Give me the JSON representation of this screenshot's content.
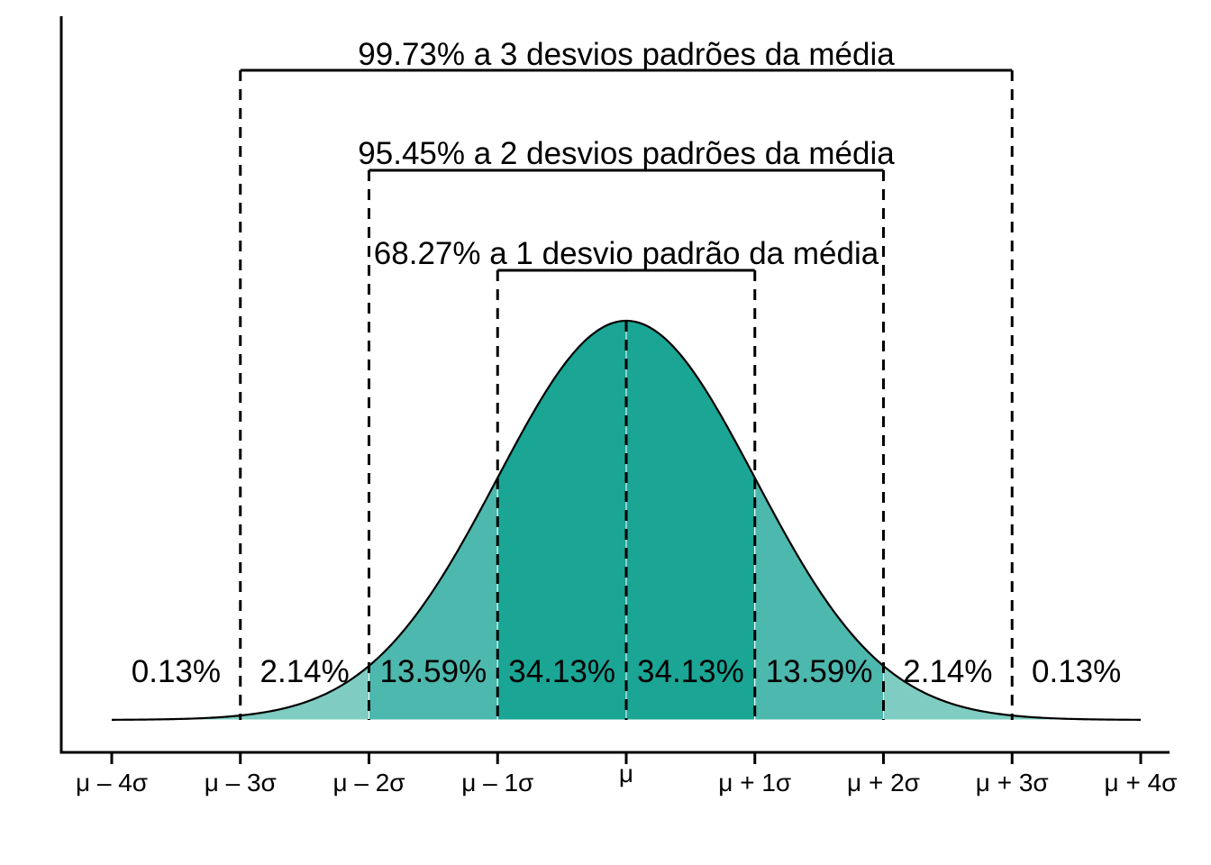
{
  "chart_data": {
    "type": "area",
    "title": "",
    "xlabel": "",
    "ylabel": "",
    "xlim": [
      -4,
      4
    ],
    "distribution": {
      "name": "normal",
      "mean": 0,
      "sd": 1
    },
    "x_ticks": [
      -4,
      -3,
      -2,
      -1,
      0,
      1,
      2,
      3,
      4
    ],
    "x_tick_labels": [
      "μ – 4σ",
      "μ – 3σ",
      "μ – 2σ",
      "μ – 1σ",
      "μ",
      "μ + 1σ",
      "μ + 2σ",
      "μ + 3σ",
      "μ + 4σ"
    ],
    "sigma_lines": [
      -3,
      -2,
      -1,
      0,
      1,
      2,
      3
    ],
    "regions": [
      {
        "from": -4,
        "to": -3,
        "label": "0.13%",
        "color": "#7fccc2"
      },
      {
        "from": -3,
        "to": -2,
        "label": "2.14%",
        "color": "#7fccc2"
      },
      {
        "from": -2,
        "to": -1,
        "label": "13.59%",
        "color": "#4db8ad"
      },
      {
        "from": -1,
        "to": 0,
        "label": "34.13%",
        "color": "#1aa595"
      },
      {
        "from": 0,
        "to": 1,
        "label": "34.13%",
        "color": "#1aa595"
      },
      {
        "from": 1,
        "to": 2,
        "label": "13.59%",
        "color": "#4db8ad"
      },
      {
        "from": 2,
        "to": 3,
        "label": "2.14%",
        "color": "#7fccc2"
      },
      {
        "from": 3,
        "to": 4,
        "label": "0.13%",
        "color": "#7fccc2"
      }
    ],
    "brackets": [
      {
        "k": 3,
        "label": "99.73% a 3 desvios padrões da média"
      },
      {
        "k": 2,
        "label": "95.45% a 2 desvios padrões da média"
      },
      {
        "k": 1,
        "label": "68.27% a 1 desvio padrão da média"
      }
    ],
    "grid": false,
    "legend": "none"
  }
}
